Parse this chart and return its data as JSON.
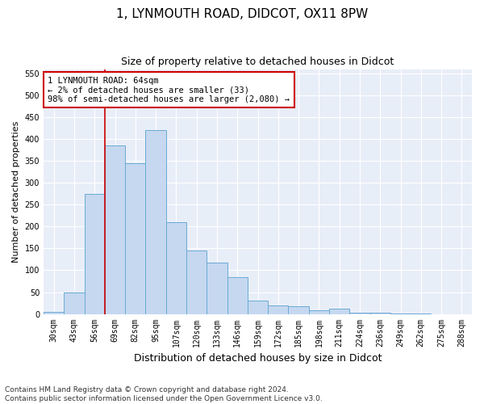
{
  "title": "1, LYNMOUTH ROAD, DIDCOT, OX11 8PW",
  "subtitle": "Size of property relative to detached houses in Didcot",
  "xlabel": "Distribution of detached houses by size in Didcot",
  "ylabel": "Number of detached properties",
  "categories": [
    "30sqm",
    "43sqm",
    "56sqm",
    "69sqm",
    "82sqm",
    "95sqm",
    "107sqm",
    "120sqm",
    "133sqm",
    "146sqm",
    "159sqm",
    "172sqm",
    "185sqm",
    "198sqm",
    "211sqm",
    "224sqm",
    "236sqm",
    "249sqm",
    "262sqm",
    "275sqm",
    "288sqm"
  ],
  "values": [
    5,
    50,
    275,
    385,
    345,
    420,
    210,
    145,
    117,
    85,
    30,
    20,
    17,
    8,
    12,
    3,
    2,
    1,
    1,
    0,
    0
  ],
  "bar_color": "#c5d8f0",
  "bar_edge_color": "#6aaad4",
  "vline_color": "#cc0000",
  "vline_x_index": 2.5,
  "annotation_text": "1 LYNMOUTH ROAD: 64sqm\n← 2% of detached houses are smaller (33)\n98% of semi-detached houses are larger (2,080) →",
  "annotation_box_color": "white",
  "annotation_box_edge": "#cc0000",
  "footer": "Contains HM Land Registry data © Crown copyright and database right 2024.\nContains public sector information licensed under the Open Government Licence v3.0.",
  "plot_bg_color": "#e8eef8",
  "fig_bg_color": "#ffffff",
  "ylim": [
    0,
    560
  ],
  "yticks": [
    0,
    50,
    100,
    150,
    200,
    250,
    300,
    350,
    400,
    450,
    500,
    550
  ],
  "title_fontsize": 11,
  "subtitle_fontsize": 9,
  "xlabel_fontsize": 9,
  "ylabel_fontsize": 8,
  "tick_fontsize": 7,
  "annot_fontsize": 7.5,
  "footer_fontsize": 6.5
}
